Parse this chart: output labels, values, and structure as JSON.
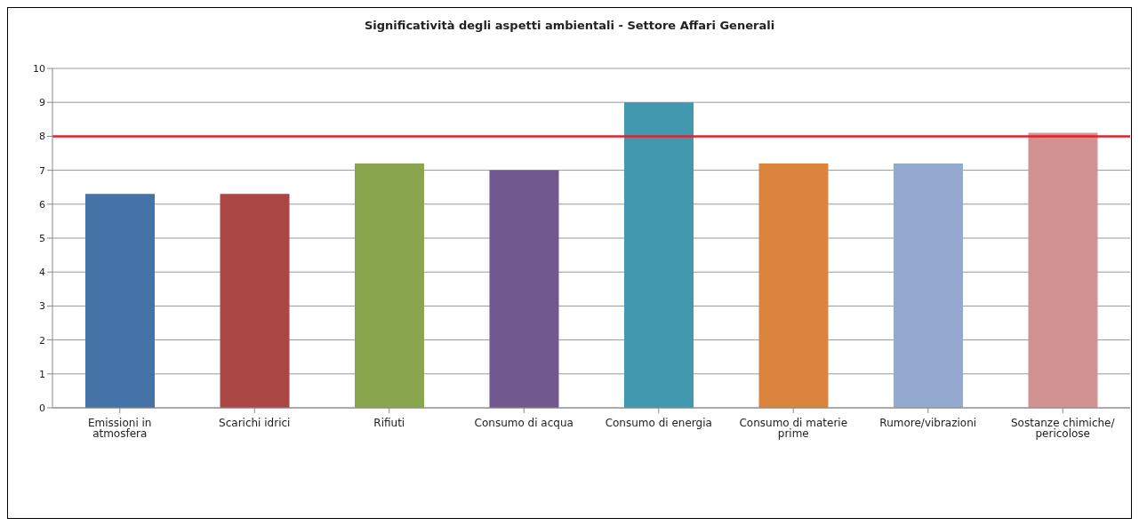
{
  "chart_data": {
    "type": "bar",
    "title": "Significatività degli aspetti ambientali - Settore Affari Generali",
    "categories": [
      "Emissioni in atmosfera",
      "Scarichi idrici",
      "Rifiuti",
      "Consumo di acqua",
      "Consumo di energia",
      "Consumo di materie prime",
      "Rumore/vibrazioni",
      "Sostanze chimiche/ pericolose"
    ],
    "values": [
      6.3,
      6.3,
      7.2,
      7.0,
      9.0,
      7.2,
      7.2,
      8.1
    ],
    "colors": [
      "#4572a7",
      "#aa4643",
      "#89a54e",
      "#71588f",
      "#4198af",
      "#db843d",
      "#93a9cf",
      "#d19392"
    ],
    "ylim": [
      0,
      10
    ],
    "yticks": [
      0,
      1,
      2,
      3,
      4,
      5,
      6,
      7,
      8,
      9,
      10
    ],
    "grid": "y",
    "ref_lines": [
      {
        "axis": "y",
        "value": 8,
        "color": "#e3202c"
      }
    ]
  }
}
